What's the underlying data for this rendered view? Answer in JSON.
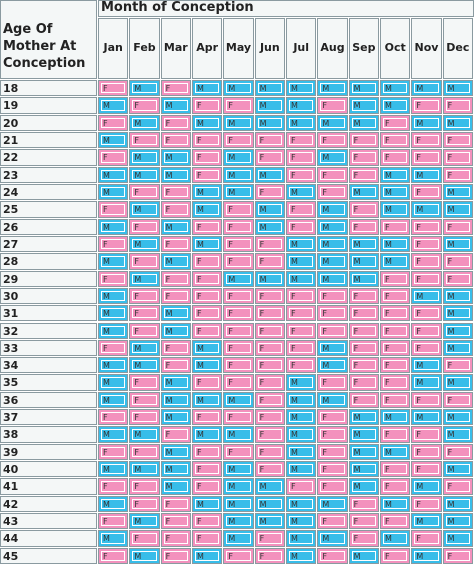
{
  "header": {
    "age_label": "Age Of Mother At Conception",
    "month_label": "Month of Conception"
  },
  "months": [
    "Jan",
    "Feb",
    "Mar",
    "Apr",
    "May",
    "Jun",
    "Jul",
    "Aug",
    "Sep",
    "Oct",
    "Nov",
    "Dec"
  ],
  "rows": [
    {
      "age": "18",
      "cells": [
        "F",
        "M",
        "F",
        "M",
        "M",
        "M",
        "M",
        "M",
        "M",
        "M",
        "M",
        "M"
      ]
    },
    {
      "age": "19",
      "cells": [
        "M",
        "F",
        "M",
        "F",
        "F",
        "M",
        "M",
        "F",
        "M",
        "M",
        "F",
        "F"
      ]
    },
    {
      "age": "20",
      "cells": [
        "F",
        "M",
        "F",
        "M",
        "M",
        "M",
        "M",
        "M",
        "M",
        "F",
        "M",
        "M"
      ]
    },
    {
      "age": "21",
      "cells": [
        "M",
        "F",
        "F",
        "F",
        "F",
        "F",
        "F",
        "F",
        "F",
        "F",
        "F",
        "F"
      ]
    },
    {
      "age": "22",
      "cells": [
        "F",
        "M",
        "M",
        "F",
        "M",
        "F",
        "F",
        "M",
        "F",
        "F",
        "F",
        "F"
      ]
    },
    {
      "age": "23",
      "cells": [
        "M",
        "M",
        "M",
        "F",
        "M",
        "M",
        "F",
        "F",
        "F",
        "M",
        "M",
        "F"
      ]
    },
    {
      "age": "24",
      "cells": [
        "M",
        "F",
        "F",
        "M",
        "M",
        "F",
        "M",
        "F",
        "M",
        "M",
        "F",
        "M"
      ]
    },
    {
      "age": "25",
      "cells": [
        "F",
        "M",
        "F",
        "M",
        "F",
        "M",
        "F",
        "M",
        "F",
        "M",
        "M",
        "M"
      ]
    },
    {
      "age": "26",
      "cells": [
        "M",
        "F",
        "M",
        "F",
        "F",
        "M",
        "F",
        "M",
        "F",
        "F",
        "F",
        "F"
      ]
    },
    {
      "age": "27",
      "cells": [
        "F",
        "M",
        "F",
        "M",
        "F",
        "F",
        "M",
        "M",
        "M",
        "M",
        "F",
        "M"
      ]
    },
    {
      "age": "28",
      "cells": [
        "M",
        "F",
        "M",
        "F",
        "F",
        "F",
        "M",
        "M",
        "M",
        "M",
        "F",
        "F"
      ]
    },
    {
      "age": "29",
      "cells": [
        "F",
        "M",
        "F",
        "F",
        "M",
        "M",
        "M",
        "M",
        "M",
        "F",
        "F",
        "F"
      ]
    },
    {
      "age": "30",
      "cells": [
        "M",
        "F",
        "F",
        "F",
        "F",
        "F",
        "F",
        "F",
        "F",
        "F",
        "M",
        "M"
      ]
    },
    {
      "age": "31",
      "cells": [
        "M",
        "F",
        "M",
        "F",
        "F",
        "F",
        "F",
        "F",
        "F",
        "F",
        "F",
        "M"
      ]
    },
    {
      "age": "32",
      "cells": [
        "M",
        "F",
        "M",
        "F",
        "F",
        "F",
        "F",
        "F",
        "F",
        "F",
        "F",
        "M"
      ]
    },
    {
      "age": "33",
      "cells": [
        "F",
        "M",
        "F",
        "M",
        "F",
        "F",
        "F",
        "M",
        "F",
        "F",
        "F",
        "M"
      ]
    },
    {
      "age": "34",
      "cells": [
        "M",
        "M",
        "F",
        "M",
        "F",
        "F",
        "F",
        "M",
        "F",
        "F",
        "M",
        "F"
      ]
    },
    {
      "age": "35",
      "cells": [
        "M",
        "F",
        "M",
        "F",
        "F",
        "F",
        "M",
        "F",
        "F",
        "F",
        "M",
        "M"
      ]
    },
    {
      "age": "36",
      "cells": [
        "M",
        "F",
        "M",
        "M",
        "M",
        "F",
        "M",
        "M",
        "F",
        "F",
        "F",
        "F"
      ]
    },
    {
      "age": "37",
      "cells": [
        "F",
        "F",
        "M",
        "F",
        "F",
        "F",
        "M",
        "F",
        "M",
        "M",
        "M",
        "M"
      ]
    },
    {
      "age": "38",
      "cells": [
        "M",
        "M",
        "F",
        "M",
        "M",
        "F",
        "M",
        "F",
        "M",
        "F",
        "F",
        "M"
      ]
    },
    {
      "age": "39",
      "cells": [
        "F",
        "F",
        "M",
        "F",
        "F",
        "F",
        "M",
        "F",
        "M",
        "M",
        "F",
        "F"
      ]
    },
    {
      "age": "40",
      "cells": [
        "M",
        "M",
        "M",
        "F",
        "M",
        "F",
        "M",
        "F",
        "M",
        "F",
        "F",
        "M"
      ]
    },
    {
      "age": "41",
      "cells": [
        "F",
        "F",
        "M",
        "F",
        "M",
        "M",
        "F",
        "F",
        "M",
        "F",
        "M",
        "F"
      ]
    },
    {
      "age": "42",
      "cells": [
        "M",
        "F",
        "F",
        "M",
        "M",
        "M",
        "M",
        "M",
        "F",
        "M",
        "F",
        "M"
      ]
    },
    {
      "age": "43",
      "cells": [
        "F",
        "M",
        "F",
        "F",
        "M",
        "M",
        "M",
        "F",
        "F",
        "F",
        "M",
        "M"
      ]
    },
    {
      "age": "44",
      "cells": [
        "M",
        "F",
        "F",
        "F",
        "M",
        "F",
        "M",
        "M",
        "F",
        "M",
        "F",
        "M"
      ]
    },
    {
      "age": "45",
      "cells": [
        "F",
        "M",
        "F",
        "M",
        "F",
        "F",
        "M",
        "F",
        "M",
        "F",
        "M",
        "F"
      ]
    }
  ]
}
